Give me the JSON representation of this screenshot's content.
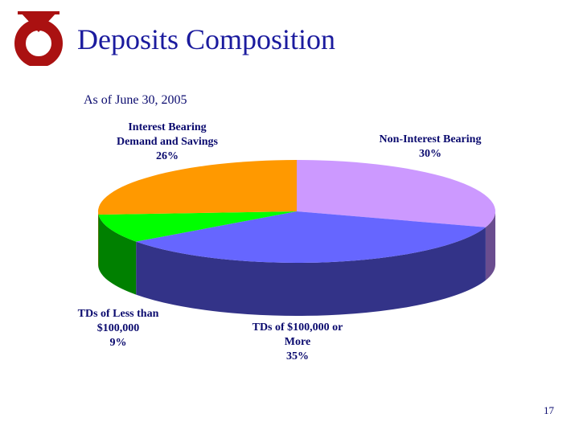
{
  "slide": {
    "title": "Deposits Composition",
    "subtitle": "As of June 30, 2005",
    "page_number": "17"
  },
  "chart_data": {
    "type": "pie",
    "style": "3d",
    "title": "",
    "slices": [
      {
        "label_lines": [
          "Non-Interest Bearing",
          "30%"
        ],
        "name": "Non-Interest Bearing",
        "value": 30,
        "color": "#cc99ff",
        "side_color": "#6a4d8f"
      },
      {
        "label_lines": [
          "TDs of $100,000 or",
          "More",
          "35%"
        ],
        "name": "TDs of $100,000 or More",
        "value": 35,
        "color": "#6666ff",
        "side_color": "#333388"
      },
      {
        "label_lines": [
          "TDs of Less than",
          "$100,000",
          "9%"
        ],
        "name": "TDs of Less than $100,000",
        "value": 9,
        "color": "#00ff00",
        "side_color": "#008000"
      },
      {
        "label_lines": [
          "Interest Bearing",
          "Demand and Savings",
          "26%"
        ],
        "name": "Interest Bearing Demand and Savings",
        "value": 26,
        "color": "#ff9900",
        "side_color": "#996600"
      }
    ]
  }
}
